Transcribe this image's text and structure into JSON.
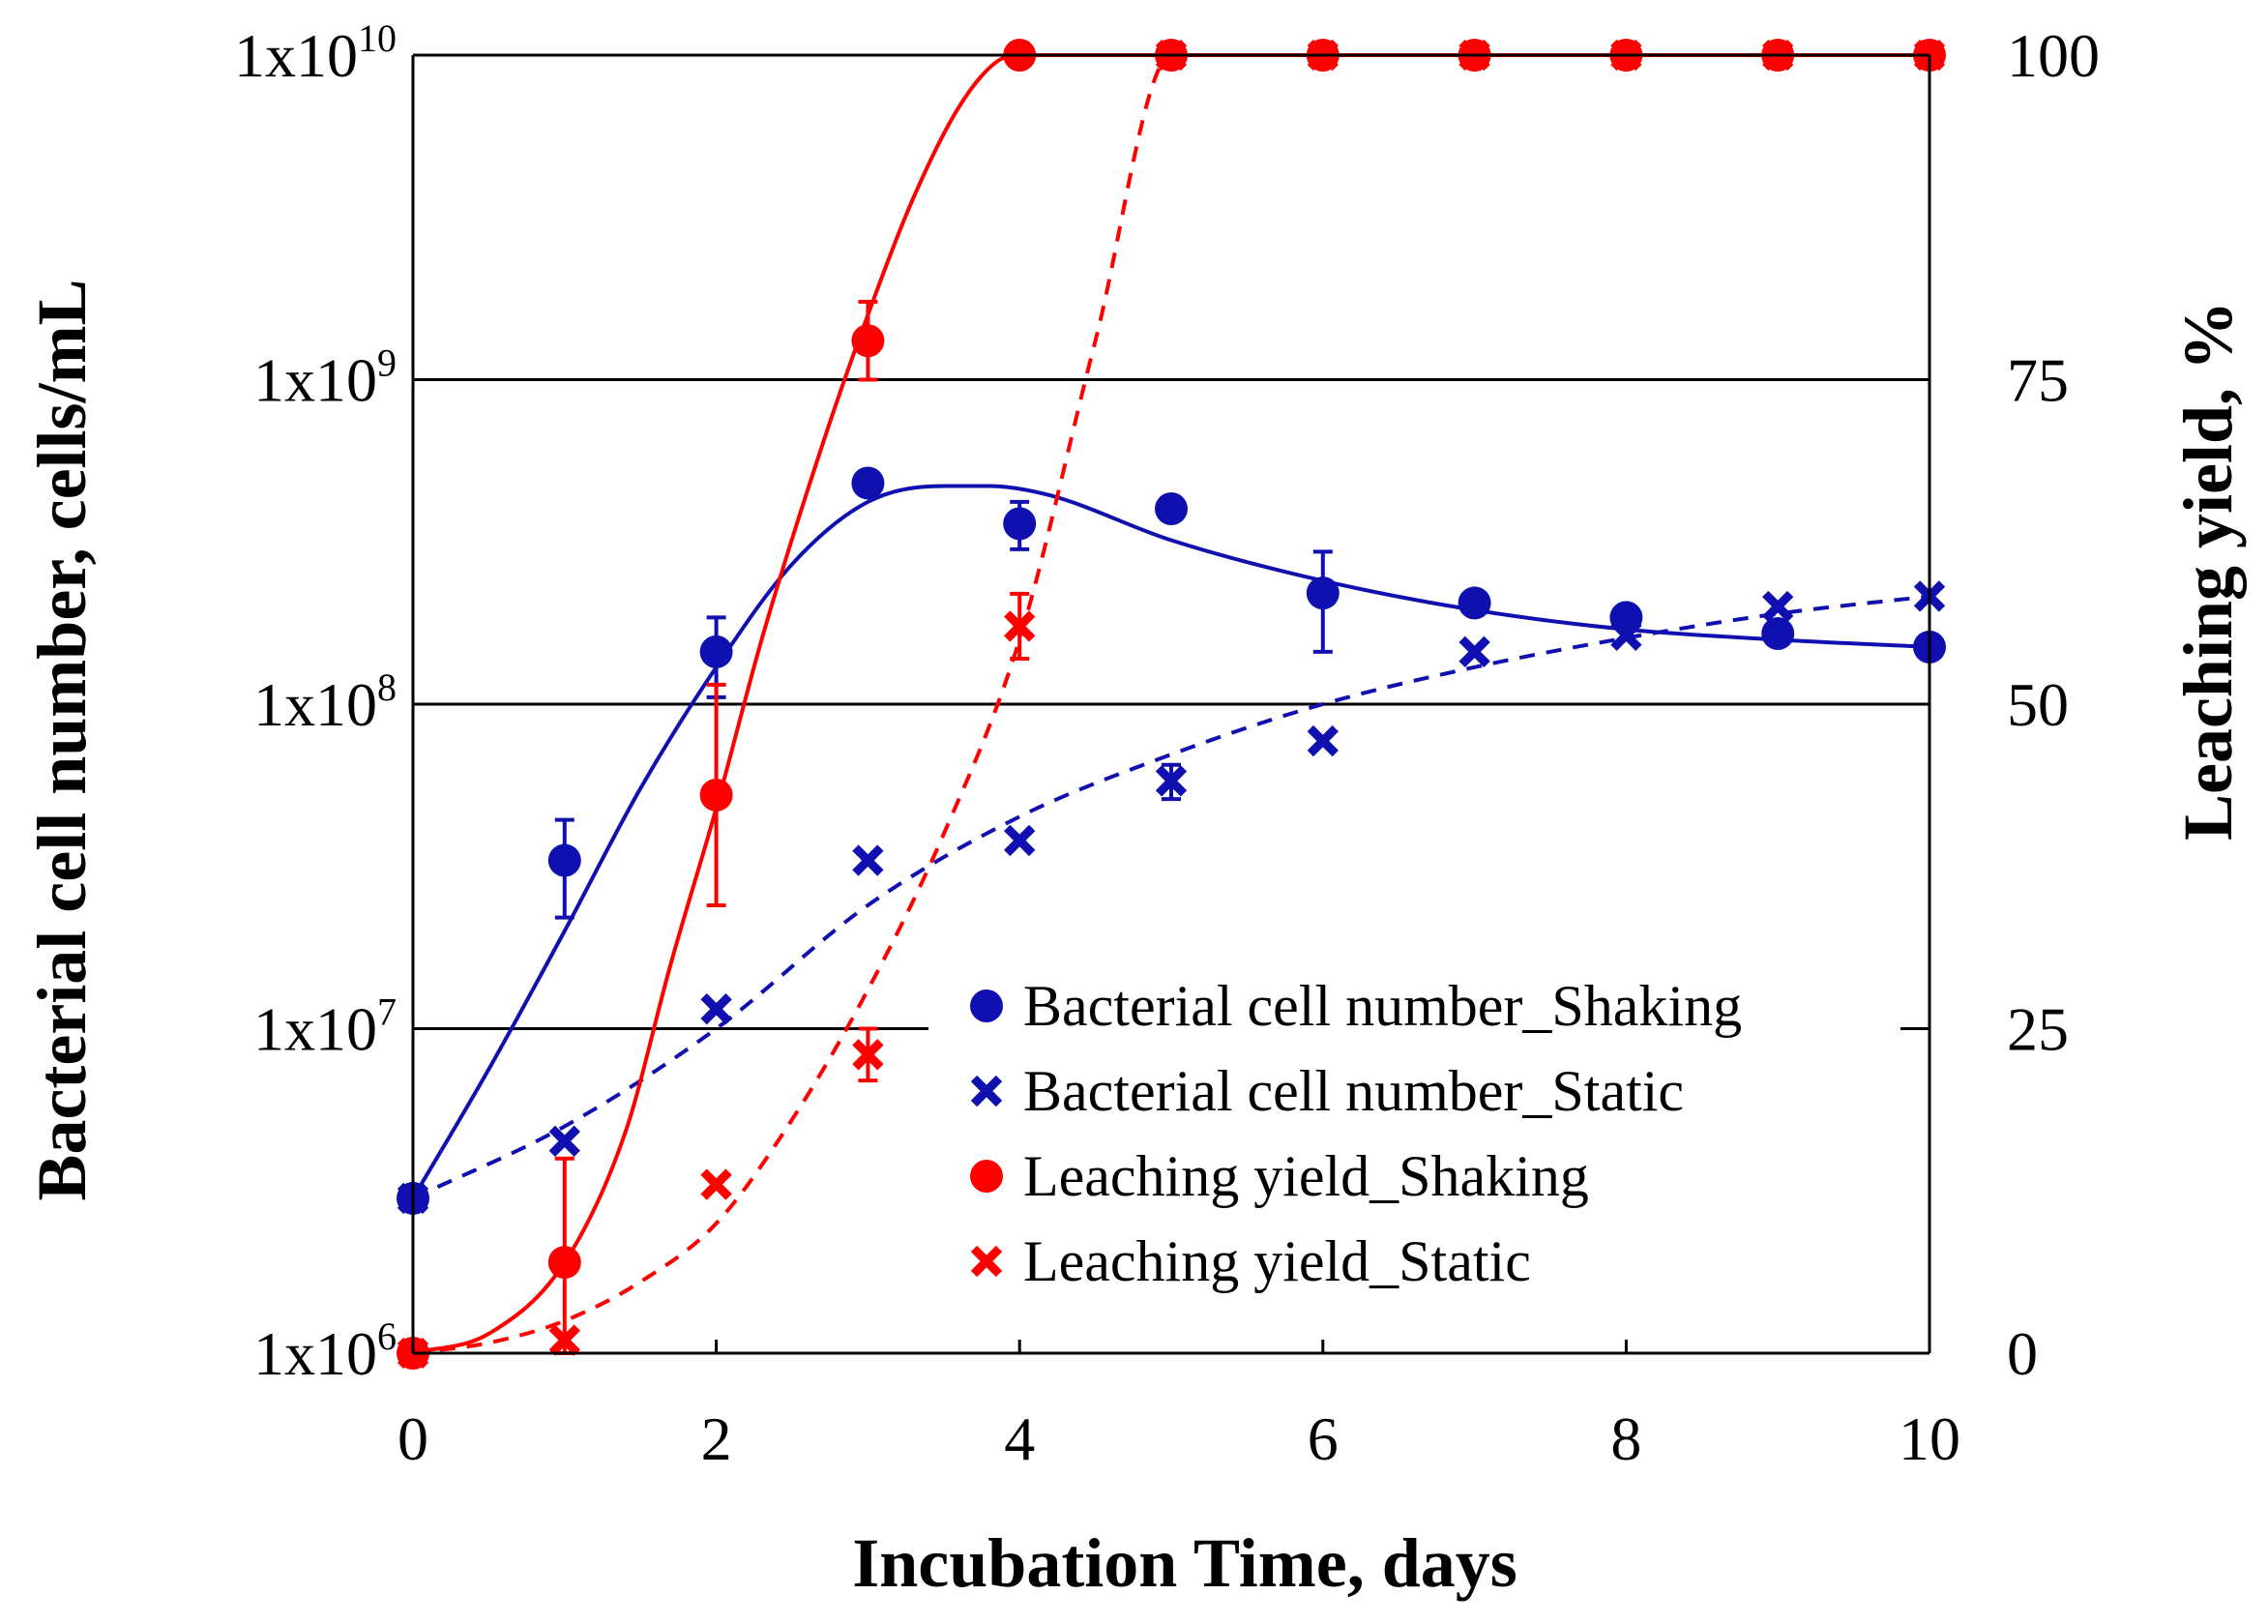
{
  "chart_data": {
    "type": "scatter",
    "xlabel": "Incubation Time, days",
    "ylabel_left": "Bacterial cell number, cells/mL",
    "ylabel_right": "Leaching yield, %",
    "xlim": [
      0,
      10
    ],
    "x_ticks": [
      "0",
      "2",
      "4",
      "6",
      "8",
      "10"
    ],
    "y_left_scale": "log",
    "y_left_lim": [
      1000000,
      10000000000
    ],
    "y_left_ticks": [
      {
        "base": "1x10",
        "exp": "6"
      },
      {
        "base": "1x10",
        "exp": "7"
      },
      {
        "base": "1x10",
        "exp": "8"
      },
      {
        "base": "1x10",
        "exp": "9"
      },
      {
        "base": "1x10",
        "exp": "10"
      }
    ],
    "y_right_lim": [
      0,
      100
    ],
    "y_right_ticks": [
      "0",
      "25",
      "50",
      "75",
      "100"
    ],
    "grid": "horizontal",
    "legend_position": "center-right",
    "series": [
      {
        "name": "Bacterial cell number_Shaking",
        "axis": "left",
        "marker": "circle",
        "color": "#1010b0",
        "line": "solid",
        "x": [
          0,
          1,
          2,
          3,
          4,
          5,
          6,
          7,
          8,
          9,
          10
        ],
        "y": [
          3000000,
          33000000,
          145000000,
          480000000,
          360000000,
          400000000,
          220000000,
          205000000,
          185000000,
          165000000,
          150000000
        ],
        "err": [
          0,
          11000000,
          40000000,
          0,
          60000000,
          0,
          75000000,
          0,
          0,
          0,
          0
        ]
      },
      {
        "name": "Bacterial cell number_Static",
        "axis": "left",
        "marker": "x",
        "color": "#1010b0",
        "line": "dashed",
        "x": [
          0,
          1,
          2,
          3,
          4,
          5,
          6,
          7,
          8,
          9,
          10
        ],
        "y": [
          3000000,
          4500000,
          11500000,
          33000000,
          38000000,
          58000000,
          77000000,
          145000000,
          163000000,
          200000000,
          215000000
        ],
        "err": [
          0,
          0,
          0,
          0,
          0,
          7000000,
          0,
          0,
          0,
          0,
          0
        ]
      },
      {
        "name": "Leaching yield_Shaking",
        "axis": "right",
        "marker": "circle",
        "color": "#ff0000",
        "line": "solid",
        "x": [
          0,
          1,
          2,
          3,
          4,
          5,
          6,
          7,
          8,
          9,
          10
        ],
        "y": [
          0,
          7,
          43,
          78,
          100,
          100,
          100,
          100,
          100,
          100,
          100
        ],
        "err": [
          0,
          8,
          8.5,
          3,
          0,
          0,
          0,
          0,
          0,
          0,
          0
        ]
      },
      {
        "name": "Leaching yield_Static",
        "axis": "right",
        "marker": "x",
        "color": "#ff0000",
        "line": "dashed",
        "x": [
          0,
          1,
          2,
          3,
          4,
          5,
          6,
          7,
          8,
          9,
          10
        ],
        "y": [
          0,
          1,
          13,
          23,
          56,
          100,
          100,
          100,
          100,
          100,
          100
        ],
        "err": [
          0,
          0,
          0,
          2,
          2.5,
          0,
          0,
          0,
          0,
          0,
          0
        ]
      }
    ],
    "fits": [
      {
        "series": "Bacterial cell number_Shaking",
        "axis": "left",
        "color": "#1010b0",
        "dash": false,
        "x": [
          0,
          0.5,
          1,
          1.5,
          2,
          2.5,
          3,
          3.5,
          3.8,
          4.2,
          5,
          6,
          7,
          8,
          9,
          10
        ],
        "y": [
          3000000,
          7500000,
          20000000,
          55000000,
          130000000,
          270000000,
          420000000,
          470000000,
          470000000,
          440000000,
          320000000,
          240000000,
          195000000,
          170000000,
          158000000,
          150000000
        ]
      },
      {
        "series": "Bacterial cell number_Static",
        "axis": "left",
        "color": "#1010b0",
        "dash": true,
        "x": [
          0,
          1,
          2,
          3,
          4,
          5,
          6,
          7,
          8,
          9,
          10
        ],
        "y": [
          3000000,
          5000000,
          10000000,
          24000000,
          45000000,
          70000000,
          100000000,
          130000000,
          160000000,
          190000000,
          215000000
        ]
      },
      {
        "series": "Leaching yield_Shaking",
        "axis": "right",
        "color": "#ff0000",
        "dash": false,
        "x": [
          0,
          0.5,
          1,
          1.4,
          1.7,
          2,
          2.3,
          2.7,
          3,
          3.3,
          3.6,
          3.85,
          4,
          10
        ],
        "y": [
          0,
          1.5,
          7,
          17,
          30,
          42,
          55,
          70,
          80,
          89,
          96,
          99.5,
          100,
          100
        ]
      },
      {
        "series": "Leaching yield_Static",
        "axis": "right",
        "color": "#ff0000",
        "dash": true,
        "x": [
          0,
          0.5,
          1,
          1.5,
          2,
          2.5,
          3,
          3.5,
          4,
          4.5,
          5,
          10
        ],
        "y": [
          0,
          0.8,
          2.5,
          5.5,
          10,
          18,
          28,
          40,
          55,
          78,
          100,
          100
        ]
      }
    ]
  }
}
